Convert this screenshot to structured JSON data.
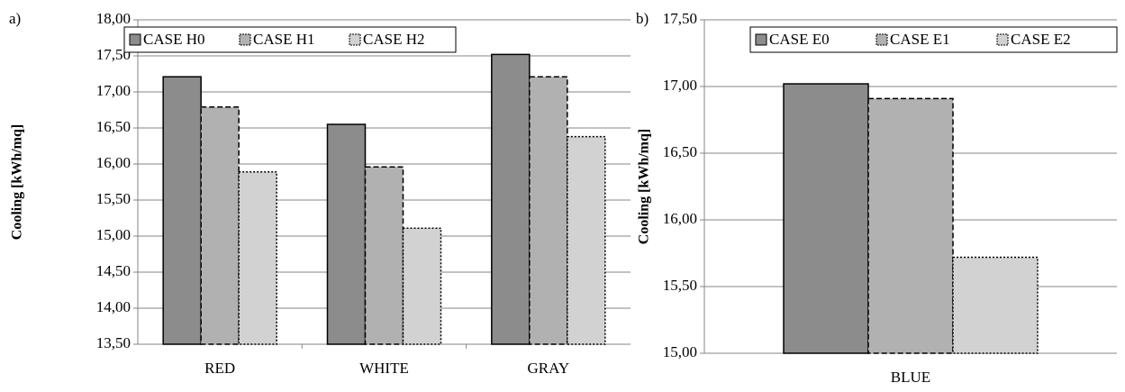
{
  "chart_data": [
    {
      "type": "bar",
      "panel_label": "a)",
      "y_label": "Cooling [kWh/mq]",
      "categories": [
        "RED",
        "WHITE",
        "GRAY"
      ],
      "series": [
        {
          "name": "CASE H0",
          "color": "#8c8c8c",
          "border": "solid",
          "values": [
            17.21,
            16.55,
            17.52
          ]
        },
        {
          "name": "CASE H1",
          "color": "#b1b1b1",
          "border": "dashed",
          "values": [
            16.79,
            15.96,
            17.21
          ]
        },
        {
          "name": "CASE H2",
          "color": "#d2d2d2",
          "border": "dotted",
          "values": [
            15.89,
            15.11,
            16.38
          ]
        }
      ],
      "ylim": [
        13.5,
        18
      ],
      "yticks": [
        {
          "value": 13.5,
          "label": "13,50"
        },
        {
          "value": 14,
          "label": "14,00"
        },
        {
          "value": 14.5,
          "label": "14,50"
        },
        {
          "value": 15,
          "label": "15,00"
        },
        {
          "value": 15.5,
          "label": "15,50"
        },
        {
          "value": 16,
          "label": "16,00"
        },
        {
          "value": 16.5,
          "label": "16,50"
        },
        {
          "value": 17,
          "label": "17,00"
        },
        {
          "value": 17.5,
          "label": "17,50"
        },
        {
          "value": 18,
          "label": "18,00"
        }
      ],
      "grid": true
    },
    {
      "type": "bar",
      "panel_label": "b)",
      "y_label": "Cooling [kWh/mq]",
      "categories": [
        "BLUE"
      ],
      "series": [
        {
          "name": "CASE E0",
          "color": "#8c8c8c",
          "border": "solid",
          "values": [
            17.02
          ]
        },
        {
          "name": "CASE E1",
          "color": "#b1b1b1",
          "border": "dashed",
          "values": [
            16.91
          ]
        },
        {
          "name": "CASE E2",
          "color": "#d2d2d2",
          "border": "dotted",
          "values": [
            15.72
          ]
        }
      ],
      "ylim": [
        15,
        17.5
      ],
      "yticks": [
        {
          "value": 15,
          "label": "15,00"
        },
        {
          "value": 15.5,
          "label": "15,50"
        },
        {
          "value": 16,
          "label": "16,00"
        },
        {
          "value": 16.5,
          "label": "16,50"
        },
        {
          "value": 17,
          "label": "17,00"
        },
        {
          "value": 17.5,
          "label": "17,50"
        }
      ],
      "grid": true
    }
  ]
}
